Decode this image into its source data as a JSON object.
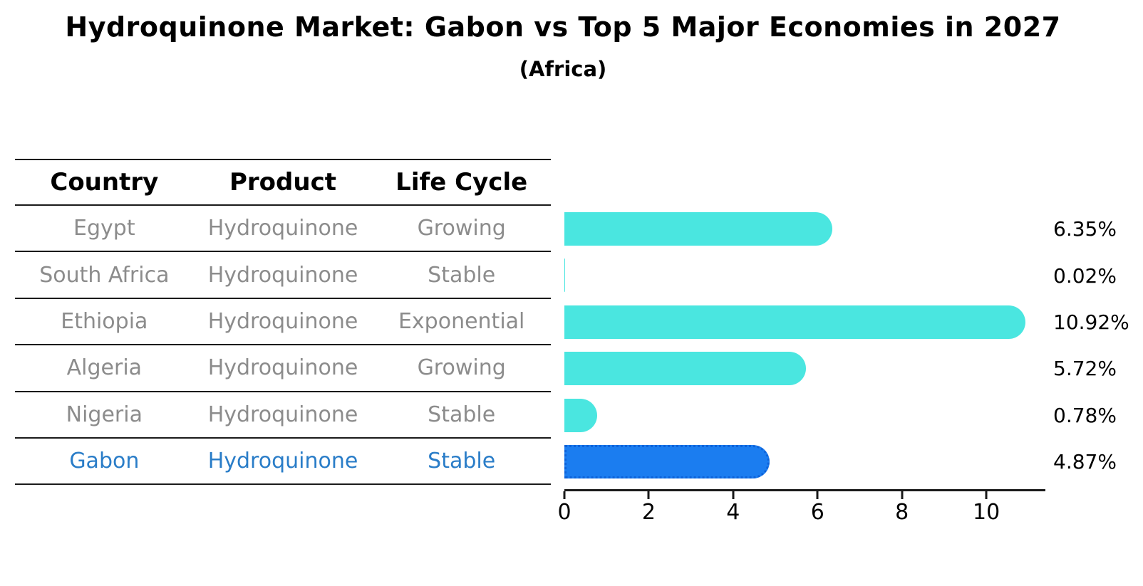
{
  "chart": {
    "title": "Hydroquinone Market: Gabon vs Top 5 Major Economies in 2027",
    "subtitle": "(Africa)"
  },
  "table": {
    "columns": [
      "Country",
      "Product",
      "Life Cycle"
    ],
    "rows": [
      {
        "country": "Egypt",
        "product": "Hydroquinone",
        "life_cycle": "Growing",
        "highlight": false
      },
      {
        "country": "South Africa",
        "product": "Hydroquinone",
        "life_cycle": "Stable",
        "highlight": false
      },
      {
        "country": "Ethiopia",
        "product": "Hydroquinone",
        "life_cycle": "Exponential",
        "highlight": false
      },
      {
        "country": "Algeria",
        "product": "Hydroquinone",
        "life_cycle": "Growing",
        "highlight": false
      },
      {
        "country": "Nigeria",
        "product": "Hydroquinone",
        "life_cycle": "Stable",
        "highlight": false
      },
      {
        "country": "Gabon",
        "product": "Hydroquinone",
        "life_cycle": "Stable",
        "highlight": true
      }
    ]
  },
  "chart_data": {
    "type": "bar",
    "orientation": "horizontal",
    "title": "Hydroquinone Market: Gabon vs Top 5 Major Economies in 2027",
    "subtitle": "(Africa)",
    "categories": [
      "Egypt",
      "South Africa",
      "Ethiopia",
      "Algeria",
      "Nigeria",
      "Gabon"
    ],
    "values": [
      6.35,
      0.02,
      10.92,
      5.72,
      0.78,
      4.87
    ],
    "value_labels": [
      "6.35%",
      "0.02%",
      "10.92%",
      "5.72%",
      "0.78%",
      "4.87%"
    ],
    "xlabel": "",
    "ylabel": "",
    "xlim": [
      0,
      11.4
    ],
    "xticks": [
      0,
      2,
      4,
      6,
      8,
      10
    ],
    "grid": false,
    "legend": "none",
    "highlight_category": "Gabon",
    "colors": {
      "bar": "#4AE6E0",
      "highlight_bar": "#1B7DF0",
      "highlight_edge": "#0D62D9",
      "highlight_text": "#2A7DC8",
      "table_text": "#8C8C8C",
      "line": "#1A1A1A"
    }
  }
}
